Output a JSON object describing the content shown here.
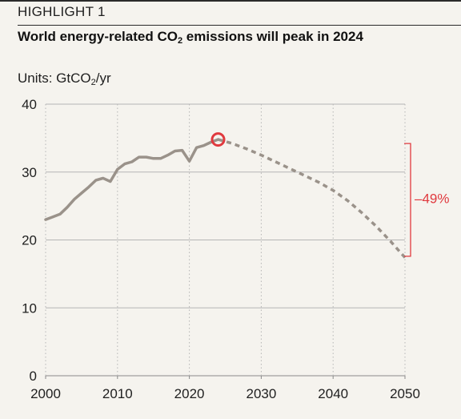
{
  "header": {
    "kicker": "HIGHLIGHT 1",
    "title_pre": "World energy-related CO",
    "title_sub": "2",
    "title_post": " emissions will peak in 2024"
  },
  "units": {
    "pre": "Units: GtCO",
    "sub": "2",
    "post": "/yr"
  },
  "colors": {
    "line": "#9a928a",
    "annotation": "#e0393e",
    "grid": "#b5b5b5",
    "background": "#f5f3ee"
  },
  "chart_data": {
    "type": "line",
    "title": "World energy-related CO2 emissions will peak in 2024",
    "ylabel": "Units: GtCO2/yr",
    "xlim": [
      2000,
      2050
    ],
    "ylim": [
      0,
      40
    ],
    "x_ticks": [
      2000,
      2010,
      2020,
      2030,
      2040,
      2050
    ],
    "y_ticks": [
      0,
      10,
      20,
      30,
      40
    ],
    "grid": true,
    "series": [
      {
        "style": "solid",
        "x": [
          2000,
          2001,
          2002,
          2003,
          2004,
          2005,
          2006,
          2007,
          2008,
          2009,
          2010,
          2011,
          2012,
          2013,
          2014,
          2015,
          2016,
          2017,
          2018,
          2019,
          2020,
          2021,
          2022,
          2023,
          2024
        ],
        "y": [
          23.0,
          23.4,
          23.8,
          24.8,
          26.0,
          26.9,
          27.8,
          28.8,
          29.1,
          28.6,
          30.4,
          31.2,
          31.5,
          32.2,
          32.2,
          32.0,
          32.0,
          32.5,
          33.1,
          33.2,
          31.6,
          33.6,
          33.9,
          34.4,
          34.8
        ]
      },
      {
        "style": "dashed",
        "x": [
          2024,
          2026,
          2028,
          2030,
          2032,
          2034,
          2036,
          2038,
          2040,
          2042,
          2044,
          2046,
          2048,
          2050
        ],
        "y": [
          34.8,
          34.2,
          33.4,
          32.5,
          31.5,
          30.5,
          29.5,
          28.5,
          27.3,
          25.8,
          24.0,
          22.0,
          19.8,
          17.4
        ]
      }
    ],
    "annotations": [
      {
        "type": "circle-marker",
        "x": 2024,
        "y": 34.8
      },
      {
        "type": "bracket",
        "from": 34.2,
        "to": 17.6,
        "label": "–49%"
      }
    ]
  }
}
